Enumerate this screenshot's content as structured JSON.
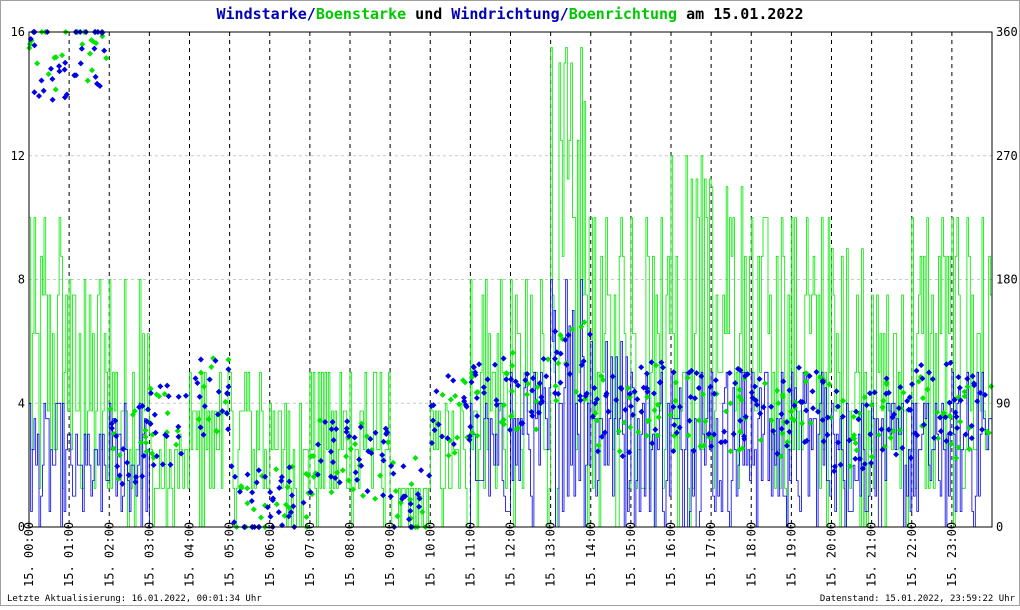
{
  "title": {
    "part1": "Windstarke/",
    "part2": "Boenstarke",
    "part3": " und ",
    "part4": "Windrichtung/",
    "part5": "Boenrichtung",
    "part6": " am 15.01.2022"
  },
  "footer": {
    "left": "Letzte Aktualisierung: 16.01.2022, 00:01:34 Uhr",
    "right": "Datenstand: 15.01.2022, 23:59:22 Uhr"
  },
  "chart_data": {
    "type": "line",
    "colors": {
      "windstarke": "#0000e6",
      "boenstarke": "#00e600",
      "grid": "#000000",
      "title_blue": "#0000b4",
      "title_green": "#00c800"
    },
    "y_left": {
      "min": 0,
      "max": 16,
      "ticks": [
        "0",
        "4",
        "8",
        "12",
        "16"
      ]
    },
    "y_right": {
      "min": 0,
      "max": 360,
      "ticks": [
        "0",
        "90",
        "180",
        "270",
        "360"
      ]
    },
    "x_ticks": [
      "15. 00:00",
      "15. 01:00",
      "15. 02:00",
      "15. 03:00",
      "15. 04:00",
      "15. 05:00",
      "15. 06:00",
      "15. 07:00",
      "15. 08:00",
      "15. 09:00",
      "15. 10:00",
      "15. 11:00",
      "15. 12:00",
      "15. 13:00",
      "15. 14:00",
      "15. 15:00",
      "15. 16:00",
      "15. 17:00",
      "15. 18:00",
      "15. 19:00",
      "15. 20:00",
      "15. 21:00",
      "15. 22:00",
      "15. 23:00"
    ],
    "series": [
      {
        "name": "Windstarke",
        "hourly_max": [
          4,
          3,
          4,
          0,
          0,
          0,
          0,
          0,
          0,
          0,
          0,
          4,
          5,
          8,
          6,
          5,
          5,
          5,
          5,
          5,
          4,
          4,
          4,
          5
        ]
      },
      {
        "name": "Boenstarke",
        "hourly_max": [
          10,
          8,
          8,
          3,
          5,
          5,
          4,
          5,
          5,
          1,
          4,
          8,
          8,
          15.5,
          10,
          10,
          12,
          11,
          10,
          10,
          9,
          7.5,
          10,
          10
        ]
      },
      {
        "name": "Windrichtung",
        "hourly_mean_deg": [
          340,
          350,
          60,
          75,
          95,
          15,
          20,
          50,
          50,
          22,
          80,
          95,
          100,
          120,
          80,
          90,
          85,
          85,
          80,
          90,
          70,
          80,
          90,
          80
        ]
      },
      {
        "name": "Boenrichtung",
        "hourly_mean_deg": [
          345,
          350,
          65,
          75,
          95,
          15,
          20,
          50,
          50,
          22,
          80,
          95,
          100,
          120,
          80,
          90,
          85,
          85,
          80,
          90,
          70,
          80,
          90,
          80
        ]
      }
    ]
  }
}
